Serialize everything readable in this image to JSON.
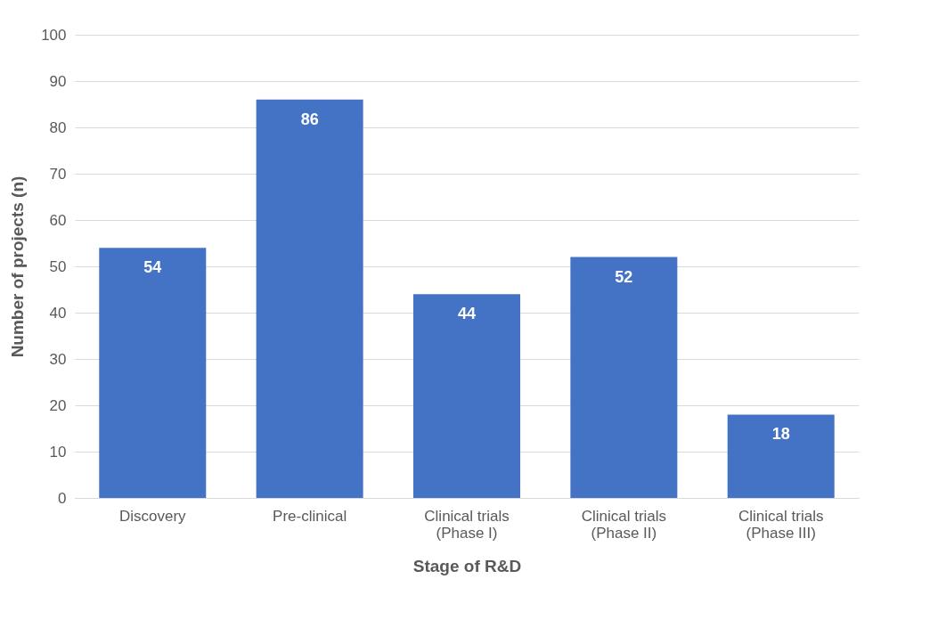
{
  "chart_data": {
    "type": "bar",
    "xlabel": "Stage of R&D",
    "ylabel": "Number of projects (n)",
    "categories": [
      "Discovery",
      "Pre-clinical",
      "Clinical trials\n(Phase I)",
      "Clinical trials\n(Phase II)",
      "Clinical trials\n(Phase III)"
    ],
    "values": [
      54,
      86,
      44,
      52,
      18
    ],
    "color": "#4472c4",
    "ylim": [
      0,
      100
    ],
    "yticks": [
      0,
      10,
      20,
      30,
      40,
      50,
      60,
      70,
      80,
      90,
      100
    ],
    "grid": "y",
    "data_labels": true
  }
}
